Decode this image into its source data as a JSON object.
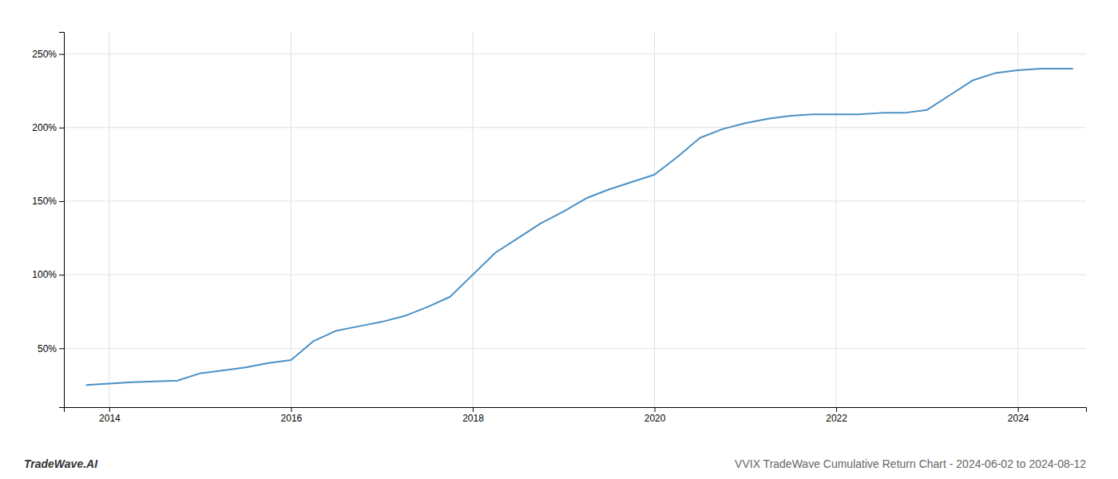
{
  "chart_data": {
    "type": "line",
    "title": "VVIX TradeWave Cumulative Return Chart - 2024-06-02 to 2024-08-12",
    "annotations": [
      "TradeWave.AI"
    ],
    "color": "#4a90c4",
    "grid": true,
    "x": [
      2013.75,
      2014.0,
      2014.25,
      2014.5,
      2014.75,
      2015.0,
      2015.25,
      2015.5,
      2015.75,
      2016.0,
      2016.25,
      2016.5,
      2016.75,
      2017.0,
      2017.25,
      2017.5,
      2017.75,
      2018.0,
      2018.25,
      2018.5,
      2018.75,
      2019.0,
      2019.25,
      2019.5,
      2019.75,
      2020.0,
      2020.25,
      2020.5,
      2020.75,
      2021.0,
      2021.25,
      2021.5,
      2021.75,
      2022.0,
      2022.25,
      2022.5,
      2022.75,
      2023.0,
      2023.25,
      2023.5,
      2023.75,
      2024.0,
      2024.25,
      2024.5,
      2024.6
    ],
    "values": [
      25,
      26,
      27,
      27.5,
      28,
      33,
      35,
      37,
      40,
      42,
      55,
      62,
      65,
      68,
      72,
      78,
      85,
      100,
      115,
      125,
      135,
      143,
      152,
      158,
      163,
      168,
      180,
      193,
      199,
      203,
      206,
      208,
      209,
      209,
      209,
      210,
      210,
      212,
      222,
      232,
      237,
      239,
      240,
      240,
      240
    ],
    "xlim": [
      2013.5,
      2024.75
    ],
    "ylim": [
      10,
      265
    ],
    "xticks": [
      2014,
      2016,
      2018,
      2020,
      2022,
      2024
    ],
    "yticks": [
      {
        "value": 50,
        "label": "50%"
      },
      {
        "value": 100,
        "label": "100%"
      },
      {
        "value": 150,
        "label": "150%"
      },
      {
        "value": 200,
        "label": "200%"
      },
      {
        "value": 250,
        "label": "250%"
      }
    ]
  }
}
